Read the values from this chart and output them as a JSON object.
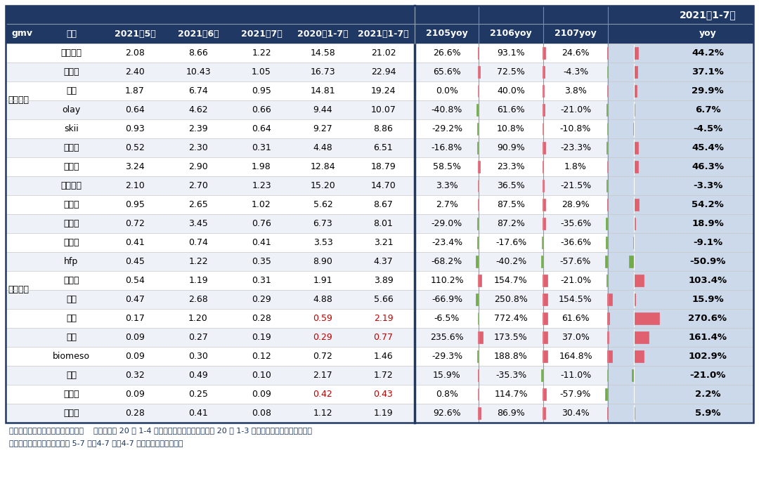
{
  "rows": [
    {
      "brand": "雅诗兰黛",
      "m5": "2.08",
      "m6": "8.66",
      "m7": "1.22",
      "ly": "14.58",
      "ty": "21.02",
      "yoy5": "26.6%",
      "yoy6": "93.1%",
      "yoy7": "24.6%",
      "yoy_total": "44.2%",
      "ty_red": false,
      "ly_red": false,
      "bar5": 26.6,
      "bar6": 93.1,
      "bar7": 24.6,
      "bar_total": 44.2
    },
    {
      "brand": "欧莱雅",
      "m5": "2.40",
      "m6": "10.43",
      "m7": "1.05",
      "ly": "16.73",
      "ty": "22.94",
      "yoy5": "65.6%",
      "yoy6": "72.5%",
      "yoy7": "-4.3%",
      "yoy_total": "37.1%",
      "ty_red": false,
      "ly_red": false,
      "bar5": 65.6,
      "bar6": 72.5,
      "bar7": -4.3,
      "bar_total": 37.1
    },
    {
      "brand": "兰蔻",
      "m5": "1.87",
      "m6": "6.74",
      "m7": "0.95",
      "ly": "14.81",
      "ty": "19.24",
      "yoy5": "0.0%",
      "yoy6": "40.0%",
      "yoy7": "3.8%",
      "yoy_total": "29.9%",
      "ty_red": false,
      "ly_red": false,
      "bar5": 0.0,
      "bar6": 40.0,
      "bar7": 3.8,
      "bar_total": 29.9
    },
    {
      "brand": "olay",
      "m5": "0.64",
      "m6": "4.62",
      "m7": "0.66",
      "ly": "9.44",
      "ty": "10.07",
      "yoy5": "-40.8%",
      "yoy6": "61.6%",
      "yoy7": "-21.0%",
      "yoy_total": "6.7%",
      "ty_red": false,
      "ly_red": false,
      "bar5": -40.8,
      "bar6": 61.6,
      "bar7": -21.0,
      "bar_total": 6.7
    },
    {
      "brand": "skii",
      "m5": "0.93",
      "m6": "2.39",
      "m7": "0.64",
      "ly": "9.27",
      "ty": "8.86",
      "yoy5": "-29.2%",
      "yoy6": "10.8%",
      "yoy7": "-10.8%",
      "yoy_total": "-4.5%",
      "ty_red": false,
      "ly_red": false,
      "bar5": -29.2,
      "bar6": 10.8,
      "bar7": -10.8,
      "bar_total": -4.5
    },
    {
      "brand": "资生堂",
      "m5": "0.52",
      "m6": "2.30",
      "m7": "0.31",
      "ly": "4.48",
      "ty": "6.51",
      "yoy5": "-16.8%",
      "yoy6": "90.9%",
      "yoy7": "-23.3%",
      "yoy_total": "45.4%",
      "ty_red": false,
      "ly_red": false,
      "bar5": -16.8,
      "bar6": 90.9,
      "bar7": -23.3,
      "bar_total": 45.4
    },
    {
      "brand": "花西子",
      "m5": "3.24",
      "m6": "2.90",
      "m7": "1.98",
      "ly": "12.84",
      "ty": "18.79",
      "yoy5": "58.5%",
      "yoy6": "23.3%",
      "yoy7": "1.8%",
      "yoy_total": "46.3%",
      "ty_red": false,
      "ly_red": false,
      "bar5": 58.5,
      "bar6": 23.3,
      "bar7": 1.8,
      "bar_total": 46.3
    },
    {
      "brand": "完美日记",
      "m5": "2.10",
      "m6": "2.70",
      "m7": "1.23",
      "ly": "15.20",
      "ty": "14.70",
      "yoy5": "3.3%",
      "yoy6": "36.5%",
      "yoy7": "-21.5%",
      "yoy_total": "-3.3%",
      "ty_red": false,
      "ly_red": false,
      "bar5": 3.3,
      "bar6": 36.5,
      "bar7": -21.5,
      "bar_total": -3.3
    },
    {
      "brand": "珀莱雅",
      "m5": "0.95",
      "m6": "2.65",
      "m7": "1.02",
      "ly": "5.62",
      "ty": "8.67",
      "yoy5": "2.7%",
      "yoy6": "87.5%",
      "yoy7": "28.9%",
      "yoy_total": "54.2%",
      "ty_red": false,
      "ly_red": false,
      "bar5": 2.7,
      "bar6": 87.5,
      "bar7": 28.9,
      "bar_total": 54.2
    },
    {
      "brand": "薇诺娜",
      "m5": "0.72",
      "m6": "3.45",
      "m7": "0.76",
      "ly": "6.73",
      "ty": "8.01",
      "yoy5": "-29.0%",
      "yoy6": "87.2%",
      "yoy7": "-35.6%",
      "yoy_total": "18.9%",
      "ty_red": false,
      "ly_red": false,
      "bar5": -29.0,
      "bar6": 87.2,
      "bar7": -35.6,
      "bar_total": 18.9
    },
    {
      "brand": "御泥坊",
      "m5": "0.41",
      "m6": "0.74",
      "m7": "0.41",
      "ly": "3.53",
      "ty": "3.21",
      "yoy5": "-23.4%",
      "yoy6": "-17.6%",
      "yoy7": "-36.6%",
      "yoy_total": "-9.1%",
      "ty_red": false,
      "ly_red": false,
      "bar5": -23.4,
      "bar6": -17.6,
      "bar7": -36.6,
      "bar_total": -9.1
    },
    {
      "brand": "hfp",
      "m5": "0.45",
      "m6": "1.22",
      "m7": "0.35",
      "ly": "8.90",
      "ty": "4.37",
      "yoy5": "-68.2%",
      "yoy6": "-40.2%",
      "yoy7": "-57.6%",
      "yoy_total": "-50.9%",
      "ty_red": false,
      "ly_red": false,
      "bar5": -68.2,
      "bar6": -40.2,
      "bar7": -57.6,
      "bar_total": -50.9
    },
    {
      "brand": "润百颜",
      "m5": "0.54",
      "m6": "1.19",
      "m7": "0.31",
      "ly": "1.91",
      "ty": "3.89",
      "yoy5": "110.2%",
      "yoy6": "154.7%",
      "yoy7": "-21.0%",
      "yoy_total": "103.4%",
      "ty_red": false,
      "ly_red": false,
      "bar5": 110.2,
      "bar6": 154.7,
      "bar7": -21.0,
      "bar_total": 103.4
    },
    {
      "brand": "玉泽",
      "m5": "0.47",
      "m6": "2.68",
      "m7": "0.29",
      "ly": "4.88",
      "ty": "5.66",
      "yoy5": "-66.9%",
      "yoy6": "250.8%",
      "yoy7": "154.5%",
      "yoy_total": "15.9%",
      "ty_red": false,
      "ly_red": false,
      "bar5": -66.9,
      "bar6": 250.8,
      "bar7": 154.5,
      "bar_total": 15.9
    },
    {
      "brand": "夸迪",
      "m5": "0.17",
      "m6": "1.20",
      "m7": "0.28",
      "ly": "0.59",
      "ty": "2.19",
      "yoy5": "-6.5%",
      "yoy6": "772.4%",
      "yoy7": "61.6%",
      "yoy_total": "270.6%",
      "ty_red": true,
      "ly_red": true,
      "bar5": -6.5,
      "bar6": 772.4,
      "bar7": 61.6,
      "bar_total": 270.6
    },
    {
      "brand": "彩棠",
      "m5": "0.09",
      "m6": "0.27",
      "m7": "0.19",
      "ly": "0.29",
      "ty": "0.77",
      "yoy5": "235.6%",
      "yoy6": "173.5%",
      "yoy7": "37.0%",
      "yoy_total": "161.4%",
      "ty_red": true,
      "ly_red": true,
      "bar5": 235.6,
      "bar6": 173.5,
      "bar7": 37.0,
      "bar_total": 161.4
    },
    {
      "brand": "biomeso",
      "m5": "0.09",
      "m6": "0.30",
      "m7": "0.12",
      "ly": "0.72",
      "ty": "1.46",
      "yoy5": "-29.3%",
      "yoy6": "188.8%",
      "yoy7": "164.8%",
      "yoy_total": "102.9%",
      "ty_red": false,
      "ly_red": false,
      "bar5": -29.3,
      "bar6": 188.8,
      "bar7": 164.8,
      "bar_total": 102.9
    },
    {
      "brand": "丸美",
      "m5": "0.32",
      "m6": "0.49",
      "m7": "0.10",
      "ly": "2.17",
      "ty": "1.72",
      "yoy5": "15.9%",
      "yoy6": "-35.3%",
      "yoy7": "-11.0%",
      "yoy_total": "-21.0%",
      "ty_red": false,
      "ly_red": false,
      "bar5": 15.9,
      "bar6": -35.3,
      "bar7": -11.0,
      "bar_total": -21.0
    },
    {
      "brand": "米蓓尔",
      "m5": "0.09",
      "m6": "0.25",
      "m7": "0.09",
      "ly": "0.42",
      "ty": "0.43",
      "yoy5": "0.8%",
      "yoy6": "114.7%",
      "yoy7": "-57.9%",
      "yoy_total": "2.2%",
      "ty_red": true,
      "ly_red": true,
      "bar5": 0.8,
      "bar6": 114.7,
      "bar7": -57.9,
      "bar_total": 2.2
    },
    {
      "brand": "佰草集",
      "m5": "0.28",
      "m6": "0.41",
      "m7": "0.08",
      "ly": "1.12",
      "ty": "1.19",
      "yoy5": "92.6%",
      "yoy6": "86.9%",
      "yoy7": "30.4%",
      "yoy_total": "5.9%",
      "ty_red": false,
      "ly_red": false,
      "bar5": 92.6,
      "bar6": 86.9,
      "bar7": 30.4,
      "bar_total": 5.9
    }
  ],
  "group_intl": {
    "label": "国际品牌",
    "start": 0,
    "end": 5
  },
  "group_dom": {
    "label": "国内品牌",
    "start": 6,
    "end": 19
  },
  "footer_line1": "资料来源：阿里平台数据，华创证券    注：米蓓尔 20 年 1-4 月店铺数据缺失，彩棠和夸迪 20 年 1-3 月数据缺失，因此米蓓尔、彩",
  "footer_line2": "棠、夸迪累计数据口径分别为 5-7 月、4-7 月、4-7 月（上图数字已标红）",
  "bg_color": "#ffffff",
  "header_bg": "#1f3864",
  "header_fg": "#ffffff",
  "row_odd": "#ffffff",
  "row_even": "#eef2f8",
  "light_blue_col": "#ccd9ea",
  "red_bar": "#e06070",
  "green_bar": "#70ad47",
  "red_text": "#c00000",
  "dark_sep": "#1f3864",
  "light_sep": "#aaaaaa",
  "col_sep_dark": "#1a3560",
  "table_border": "#1f3864"
}
